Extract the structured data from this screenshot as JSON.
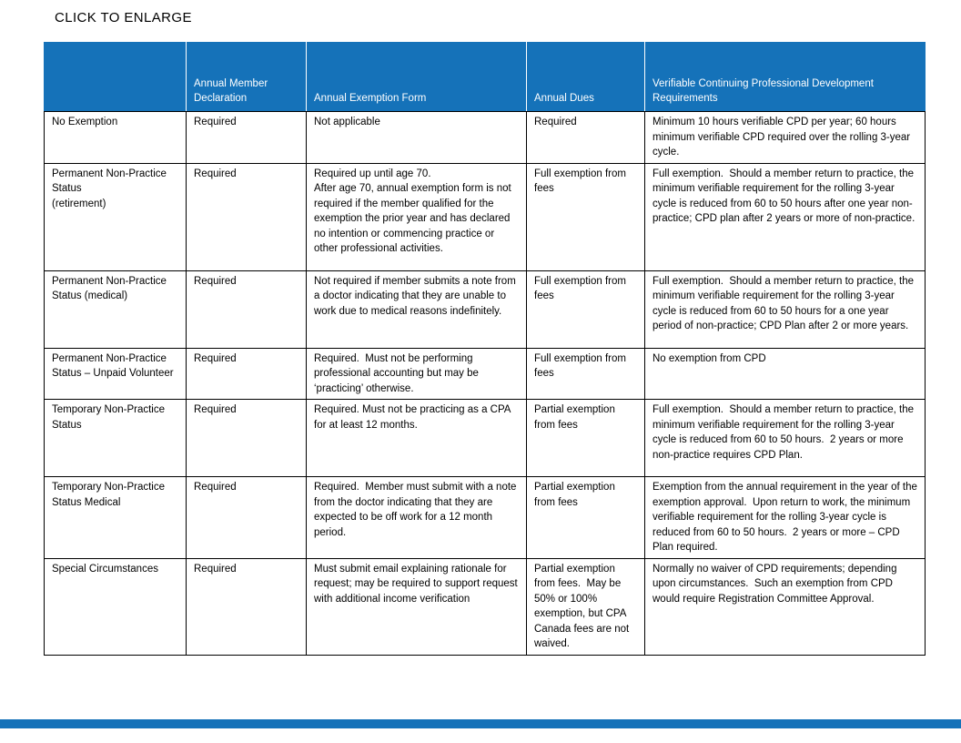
{
  "page": {
    "title": "CLICK TO ENLARGE"
  },
  "colors": {
    "header_blue": "#1572B9",
    "bottom_bar_blue": "#1572B9",
    "header_text": "#FFFFFF",
    "body_text": "#000000",
    "border": "#000000"
  },
  "table": {
    "headers": [
      "",
      "Annual Member Declaration",
      "Annual Exemption Form",
      "Annual Dues",
      "Verifiable Continuing Professional Development Requirements"
    ],
    "rows": [
      {
        "cells": [
          "No Exemption",
          "Required",
          "Not applicable",
          "Required",
          "Minimum 10 hours verifiable CPD per year; 60 hours minimum verifiable CPD required over the rolling 3-year cycle."
        ]
      },
      {
        "cells": [
          "Permanent Non-Practice Status\n(retirement)",
          "Required",
          "Required up until age 70.\nAfter age 70, annual exemption form is not required if the member qualified for the exemption the prior year and has declared no intention or commencing practice or other professional activities.",
          "Full exemption from fees",
          "Full exemption.  Should a member return to practice, the minimum verifiable requirement for the rolling 3-year cycle is reduced from 60 to 50 hours after one year non-practice; CPD plan after 2 years or more of non-practice."
        ]
      },
      {
        "cells": [
          "Permanent Non-Practice Status (medical)",
          "Required",
          "Not required if member submits a note from a doctor indicating that they are unable to work due to medical reasons indefinitely.",
          "Full exemption from fees",
          "Full exemption.  Should a member return to practice, the minimum verifiable requirement for the rolling 3-year cycle is reduced from 60 to 50 hours for a one year period of non-practice; CPD Plan after 2 or more years."
        ]
      },
      {
        "cells": [
          "Permanent Non-Practice Status – Unpaid Volunteer",
          "Required",
          "Required.  Must not be performing professional accounting but may be ‘practicing’ otherwise.",
          "Full exemption from fees",
          "No exemption from CPD"
        ]
      },
      {
        "cells": [
          "Temporary Non-Practice Status",
          "Required",
          "Required. Must not be practicing as a CPA for at least 12 months.",
          "Partial exemption from fees",
          "Full exemption.  Should a member return to practice, the minimum verifiable requirement for the rolling 3-year cycle is reduced from 60 to 50 hours.  2 years or more non-practice requires CPD Plan."
        ]
      },
      {
        "cells": [
          "Temporary Non-Practice Status Medical",
          "Required",
          "Required.  Member must submit with a note from the doctor indicating that they are expected to be off work for a 12 month period.",
          "Partial exemption from fees",
          "Exemption from the annual requirement in the year of the exemption approval.  Upon return to work, the minimum verifiable requirement for the rolling 3-year cycle is reduced from 60 to 50 hours.  2 years or more – CPD Plan required."
        ]
      },
      {
        "cells": [
          "Special Circumstances",
          "Required",
          "Must submit email explaining rationale for request; may be required to support request with additional income verification",
          "Partial exemption from fees.  May be 50% or 100% exemption, but CPA Canada fees are not waived.",
          "Normally no waiver of CPD requirements; depending upon circumstances.  Such an exemption from CPD would require Registration Committee Approval."
        ]
      }
    ]
  }
}
